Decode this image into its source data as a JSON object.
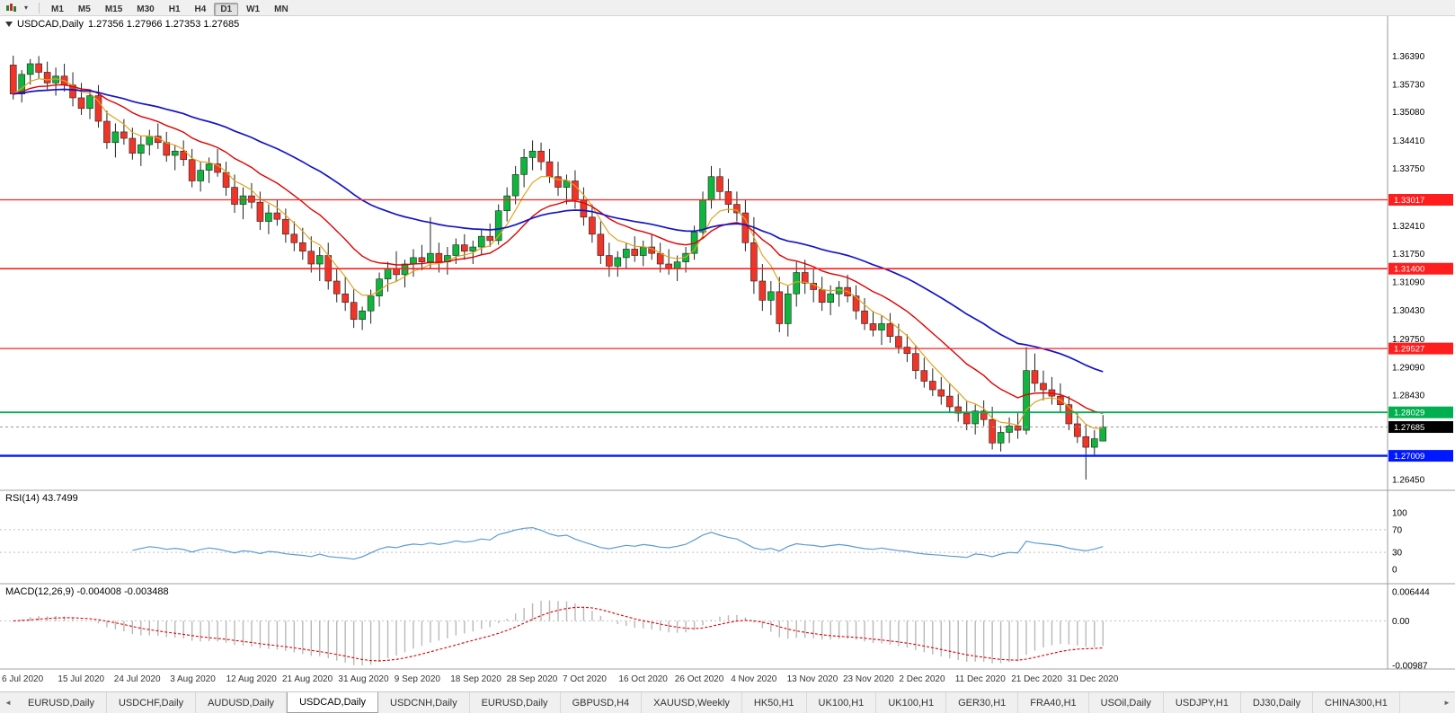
{
  "toolbar": {
    "timeframes": [
      "M1",
      "M5",
      "M15",
      "M30",
      "H1",
      "H4",
      "D1",
      "W1",
      "MN"
    ],
    "active_timeframe": "D1",
    "caret_icon": "▾"
  },
  "chart": {
    "title": "USDCAD,Daily",
    "ohlc_text": "1.27356 1.27966 1.27353 1.27685",
    "open": "1.27356",
    "high": "1.27966",
    "low": "1.27353",
    "close": "1.27685",
    "current_price": {
      "value": 1.27685,
      "label": "1.27685",
      "bg": "#000000"
    },
    "price_ticks": [
      "1.36390",
      "1.35730",
      "1.35080",
      "1.34410",
      "1.33750",
      "1.32410",
      "1.31750",
      "1.31090",
      "1.30430",
      "1.29750",
      "1.29090",
      "1.28430",
      "1.26450"
    ],
    "levels": [
      {
        "label": "1.33017",
        "value": 1.33017,
        "color": "#FF1E1E",
        "width": 1.2
      },
      {
        "label": "1.31400",
        "value": 1.314,
        "color": "#FF1E1E",
        "width": 1.6
      },
      {
        "label": "1.29527",
        "value": 1.29527,
        "color": "#FF1E1E",
        "width": 1.2
      },
      {
        "label": "1.28029",
        "value": 1.28029,
        "color": "#00B050",
        "width": 1.8
      },
      {
        "label": "1.27009",
        "value": 1.27009,
        "color": "#0018FF",
        "width": 2.4
      }
    ],
    "colors": {
      "up_candle": "#0FB53C",
      "down_candle": "#F03528",
      "wick": "#222222",
      "ma_fast": "#DFA420",
      "ma_mid": "#E00000",
      "ma_slow": "#1414C8",
      "grid": "#C0C0C0",
      "axis_line": "#9a9a9a"
    },
    "ma_periods": {
      "fast": 6,
      "mid": 16,
      "slow": 40
    }
  },
  "rsi": {
    "label": "RSI(14) 43.7499",
    "period": 14,
    "axis_ticks": [
      "100",
      "70",
      "30",
      "0"
    ],
    "upper_level": 70,
    "lower_level": 30,
    "color": "#5B9BD5"
  },
  "macd": {
    "label": "MACD(12,26,9) -0.004008 -0.003488",
    "fast": 12,
    "slow": 26,
    "signal_period": 9,
    "axis_ticks": [
      "0.006444",
      "0.00",
      "-0.00987"
    ],
    "axis_max": 0.006444,
    "axis_min": -0.00987,
    "histogram_color": "#B8B8B8",
    "signal_color": "#E00000"
  },
  "time_axis": [
    "6 Jul 2020",
    "15 Jul 2020",
    "24 Jul 2020",
    "3 Aug 2020",
    "12 Aug 2020",
    "21 Aug 2020",
    "31 Aug 2020",
    "9 Sep 2020",
    "18 Sep 2020",
    "28 Sep 2020",
    "7 Oct 2020",
    "16 Oct 2020",
    "26 Oct 2020",
    "4 Nov 2020",
    "13 Nov 2020",
    "23 Nov 2020",
    "2 Dec 2020",
    "11 Dec 2020",
    "21 Dec 2020",
    "31 Dec 2020"
  ],
  "tabs": {
    "left_arrow": "◄",
    "right_arrow": "►",
    "items": [
      "EURUSD,Daily",
      "USDCHF,Daily",
      "AUDUSD,Daily",
      "USDCAD,Daily",
      "USDCNH,Daily",
      "EURUSD,Daily",
      "GBPUSD,H4",
      "XAUUSD,Weekly",
      "HK50,H1",
      "UK100,H1",
      "UK100,H1",
      "GER30,H1",
      "FRA40,H1",
      "USOil,Daily",
      "USDJPY,H1",
      "DJ30,Daily",
      "CHINA300,H1"
    ],
    "active_index": 3
  },
  "chart_data": {
    "type": "candlestick",
    "symbol": "USDCAD",
    "timeframe": "Daily",
    "x_range": [
      "6 Jul 2020",
      "31 Dec 2020"
    ],
    "price_range": [
      1.262,
      1.372
    ],
    "candles_ohlc": [
      [
        1.3618,
        1.364,
        1.3537,
        1.355
      ],
      [
        1.355,
        1.3606,
        1.353,
        1.3596
      ],
      [
        1.3596,
        1.3632,
        1.3572,
        1.3621
      ],
      [
        1.3621,
        1.3639,
        1.3586,
        1.3601
      ],
      [
        1.3601,
        1.3626,
        1.3561,
        1.3576
      ],
      [
        1.3576,
        1.3612,
        1.3546,
        1.3592
      ],
      [
        1.3592,
        1.3621,
        1.3556,
        1.3571
      ],
      [
        1.3571,
        1.3601,
        1.3521,
        1.3541
      ],
      [
        1.3541,
        1.3576,
        1.3501,
        1.3516
      ],
      [
        1.3516,
        1.3561,
        1.3491,
        1.3546
      ],
      [
        1.3546,
        1.3571,
        1.3471,
        1.3486
      ],
      [
        1.3486,
        1.3511,
        1.3421,
        1.3436
      ],
      [
        1.3436,
        1.3481,
        1.3401,
        1.3461
      ],
      [
        1.3461,
        1.3491,
        1.3431,
        1.3446
      ],
      [
        1.3446,
        1.3471,
        1.3396,
        1.3411
      ],
      [
        1.3411,
        1.3451,
        1.3381,
        1.3431
      ],
      [
        1.3431,
        1.3466,
        1.3406,
        1.3451
      ],
      [
        1.3451,
        1.3481,
        1.3421,
        1.3436
      ],
      [
        1.3436,
        1.3461,
        1.3391,
        1.3406
      ],
      [
        1.3406,
        1.3431,
        1.3371,
        1.3416
      ],
      [
        1.3416,
        1.3441,
        1.3381,
        1.3396
      ],
      [
        1.3396,
        1.3421,
        1.3331,
        1.3346
      ],
      [
        1.3346,
        1.3391,
        1.3321,
        1.3371
      ],
      [
        1.3371,
        1.3401,
        1.3341,
        1.3386
      ],
      [
        1.3386,
        1.3421,
        1.3356,
        1.3366
      ],
      [
        1.3366,
        1.3391,
        1.3311,
        1.3331
      ],
      [
        1.3331,
        1.3361,
        1.3271,
        1.3291
      ],
      [
        1.3291,
        1.3331,
        1.3256,
        1.3311
      ],
      [
        1.3311,
        1.3341,
        1.3281,
        1.3296
      ],
      [
        1.3296,
        1.3321,
        1.3231,
        1.3251
      ],
      [
        1.3251,
        1.3291,
        1.3221,
        1.3271
      ],
      [
        1.3271,
        1.3301,
        1.3241,
        1.3256
      ],
      [
        1.3256,
        1.3281,
        1.3201,
        1.3221
      ],
      [
        1.3221,
        1.3251,
        1.3181,
        1.3201
      ],
      [
        1.3201,
        1.3236,
        1.3161,
        1.3181
      ],
      [
        1.3181,
        1.3216,
        1.3131,
        1.3151
      ],
      [
        1.3151,
        1.3191,
        1.3111,
        1.3171
      ],
      [
        1.3171,
        1.3201,
        1.3091,
        1.3111
      ],
      [
        1.3111,
        1.3141,
        1.3061,
        1.3081
      ],
      [
        1.3081,
        1.3121,
        1.3041,
        1.3061
      ],
      [
        1.3061,
        1.3091,
        1.3001,
        1.3021
      ],
      [
        1.3021,
        1.3051,
        1.2996,
        1.3041
      ],
      [
        1.3041,
        1.3091,
        1.3011,
        1.3076
      ],
      [
        1.3076,
        1.3131,
        1.3051,
        1.3116
      ],
      [
        1.3116,
        1.3156,
        1.3086,
        1.3141
      ],
      [
        1.3141,
        1.3181,
        1.3111,
        1.3126
      ],
      [
        1.3126,
        1.3161,
        1.3096,
        1.3151
      ],
      [
        1.3151,
        1.3186,
        1.3121,
        1.3166
      ],
      [
        1.3166,
        1.3196,
        1.3136,
        1.3156
      ],
      [
        1.3156,
        1.3261,
        1.3141,
        1.3176
      ],
      [
        1.3176,
        1.3201,
        1.3131,
        1.3156
      ],
      [
        1.3156,
        1.3191,
        1.3126,
        1.3171
      ],
      [
        1.3171,
        1.3211,
        1.3151,
        1.3196
      ],
      [
        1.3196,
        1.3221,
        1.3161,
        1.3181
      ],
      [
        1.3181,
        1.3206,
        1.3151,
        1.3191
      ],
      [
        1.3191,
        1.3231,
        1.3171,
        1.3216
      ],
      [
        1.3216,
        1.3246,
        1.3191,
        1.3206
      ],
      [
        1.3206,
        1.3291,
        1.3196,
        1.3276
      ],
      [
        1.3276,
        1.3331,
        1.3251,
        1.3311
      ],
      [
        1.3311,
        1.3381,
        1.3291,
        1.3361
      ],
      [
        1.3361,
        1.3421,
        1.3331,
        1.3401
      ],
      [
        1.3401,
        1.3441,
        1.3371,
        1.3416
      ],
      [
        1.3416,
        1.3436,
        1.3371,
        1.3391
      ],
      [
        1.3391,
        1.3421,
        1.3341,
        1.3356
      ],
      [
        1.3356,
        1.3391,
        1.3311,
        1.3331
      ],
      [
        1.3331,
        1.3361,
        1.3291,
        1.3346
      ],
      [
        1.3346,
        1.3371,
        1.3281,
        1.3301
      ],
      [
        1.3301,
        1.3331,
        1.3241,
        1.3261
      ],
      [
        1.3261,
        1.3291,
        1.3201,
        1.3221
      ],
      [
        1.3221,
        1.3251,
        1.3151,
        1.3171
      ],
      [
        1.3171,
        1.3201,
        1.3121,
        1.3146
      ],
      [
        1.3146,
        1.3181,
        1.3121,
        1.3166
      ],
      [
        1.3166,
        1.3201,
        1.3141,
        1.3186
      ],
      [
        1.3186,
        1.3216,
        1.3156,
        1.3171
      ],
      [
        1.3171,
        1.3206,
        1.3146,
        1.3191
      ],
      [
        1.3191,
        1.3221,
        1.3161,
        1.3176
      ],
      [
        1.3176,
        1.3201,
        1.3131,
        1.3151
      ],
      [
        1.3151,
        1.3186,
        1.3126,
        1.3141
      ],
      [
        1.3141,
        1.3171,
        1.3111,
        1.3156
      ],
      [
        1.3156,
        1.3191,
        1.3131,
        1.3176
      ],
      [
        1.3176,
        1.3241,
        1.3161,
        1.3226
      ],
      [
        1.3226,
        1.3321,
        1.3211,
        1.3301
      ],
      [
        1.3301,
        1.3381,
        1.3281,
        1.3356
      ],
      [
        1.3356,
        1.3376,
        1.3301,
        1.3321
      ],
      [
        1.3321,
        1.3351,
        1.3271,
        1.3291
      ],
      [
        1.3291,
        1.3321,
        1.3251,
        1.3271
      ],
      [
        1.3271,
        1.3301,
        1.3181,
        1.3201
      ],
      [
        1.3201,
        1.3261,
        1.3081,
        1.3111
      ],
      [
        1.3111,
        1.3151,
        1.3041,
        1.3066
      ],
      [
        1.3066,
        1.3111,
        1.3031,
        1.3086
      ],
      [
        1.3086,
        1.3121,
        1.2991,
        1.3011
      ],
      [
        1.3011,
        1.3101,
        1.2981,
        1.3081
      ],
      [
        1.3081,
        1.3156,
        1.3051,
        1.3131
      ],
      [
        1.3131,
        1.3161,
        1.3081,
        1.3106
      ],
      [
        1.3106,
        1.3141,
        1.3061,
        1.3091
      ],
      [
        1.3091,
        1.3121,
        1.3041,
        1.3061
      ],
      [
        1.3061,
        1.3101,
        1.3031,
        1.3081
      ],
      [
        1.3081,
        1.3111,
        1.3051,
        1.3096
      ],
      [
        1.3096,
        1.3126,
        1.3061,
        1.3076
      ],
      [
        1.3076,
        1.3101,
        1.3021,
        1.3041
      ],
      [
        1.3041,
        1.3071,
        1.2996,
        1.3011
      ],
      [
        1.3011,
        1.3041,
        1.2981,
        1.2996
      ],
      [
        1.2996,
        1.3031,
        1.2961,
        1.3011
      ],
      [
        1.3011,
        1.3036,
        1.2966,
        1.2981
      ],
      [
        1.2981,
        1.3011,
        1.2941,
        1.2956
      ],
      [
        1.2956,
        1.2986,
        1.2921,
        1.2941
      ],
      [
        1.2941,
        1.2961,
        1.2881,
        1.2901
      ],
      [
        1.2901,
        1.2931,
        1.2861,
        1.2876
      ],
      [
        1.2876,
        1.2906,
        1.2841,
        1.2856
      ],
      [
        1.2856,
        1.2886,
        1.2821,
        1.2841
      ],
      [
        1.2841,
        1.2871,
        1.2801,
        1.2816
      ],
      [
        1.2816,
        1.2846,
        1.2781,
        1.2801
      ],
      [
        1.2801,
        1.2831,
        1.2761,
        1.2776
      ],
      [
        1.2776,
        1.2821,
        1.2751,
        1.2806
      ],
      [
        1.2806,
        1.2831,
        1.2771,
        1.2786
      ],
      [
        1.2786,
        1.2816,
        1.2716,
        1.2731
      ],
      [
        1.2731,
        1.2771,
        1.2711,
        1.2756
      ],
      [
        1.2756,
        1.2791,
        1.2731,
        1.2771
      ],
      [
        1.2771,
        1.2801,
        1.2741,
        1.2761
      ],
      [
        1.2761,
        1.2956,
        1.2751,
        1.2901
      ],
      [
        1.2901,
        1.2941,
        1.2851,
        1.2871
      ],
      [
        1.2871,
        1.2901,
        1.2831,
        1.2856
      ],
      [
        1.2856,
        1.2886,
        1.2821,
        1.2841
      ],
      [
        1.2841,
        1.2871,
        1.2801,
        1.2821
      ],
      [
        1.2821,
        1.2841,
        1.2761,
        1.2776
      ],
      [
        1.2776,
        1.2801,
        1.2731,
        1.2746
      ],
      [
        1.2746,
        1.2776,
        1.2645,
        1.2721
      ],
      [
        1.2721,
        1.2761,
        1.2701,
        1.2741
      ],
      [
        1.27356,
        1.27966,
        1.27353,
        1.27685
      ]
    ]
  }
}
